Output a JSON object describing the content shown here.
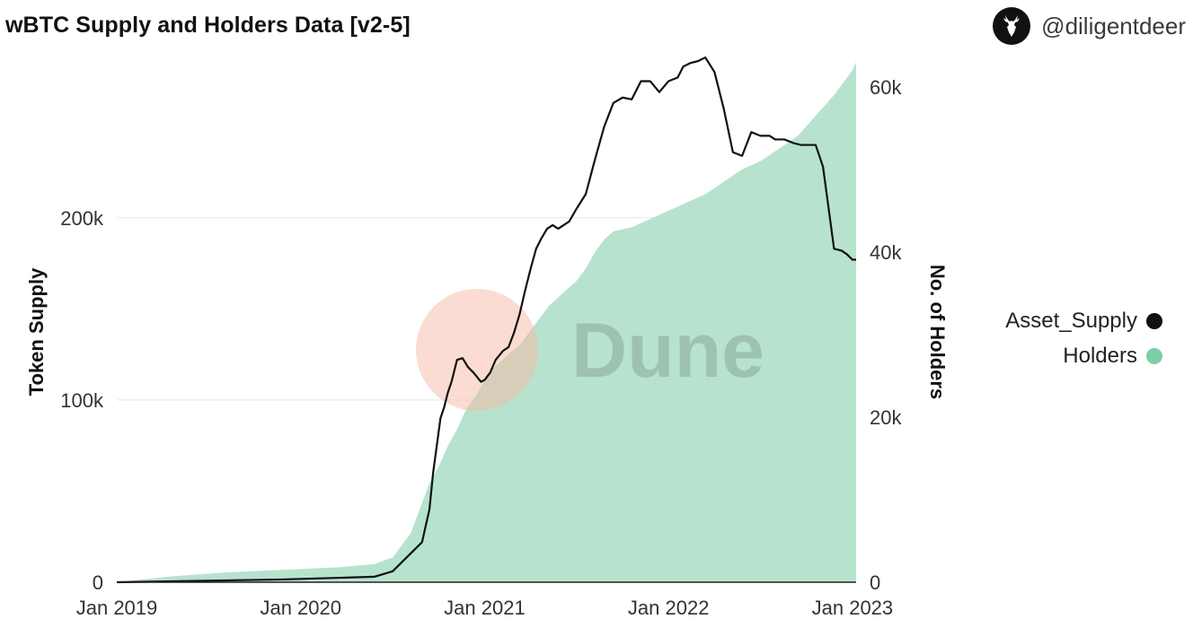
{
  "header": {
    "title": "wBTC Supply and Holders Data [v2-5]",
    "author": "@diligentdeer",
    "avatar_icon": "deer-icon"
  },
  "watermark": {
    "text": "Dune"
  },
  "chart_data": {
    "type": "line+area",
    "title": "wBTC Supply and Holders Data [v2-5]",
    "xlabel": "",
    "ylabel_left": "Token Supply",
    "ylabel_right": "No. of Holders",
    "x_ticks": [
      "Jan 2019",
      "Jan 2020",
      "Jan 2021",
      "Jan 2022",
      "Jan 2023"
    ],
    "y_left_ticks": [
      "0",
      "100k",
      "200k"
    ],
    "y_left_tick_values": [
      0,
      100000,
      200000
    ],
    "y_right_ticks": [
      "0",
      "20k",
      "40k",
      "60k"
    ],
    "y_right_tick_values": [
      0,
      20000,
      40000,
      60000
    ],
    "x_range": [
      2019.0,
      2023.02
    ],
    "y_left_range": [
      0,
      290000
    ],
    "y_right_range": [
      0,
      64000
    ],
    "grid": true,
    "legend_position": "right",
    "colors": {
      "supply": "#111111",
      "holders": "#7ccfa4",
      "holders_fill": "#b7e3ce",
      "grid": "#e8e8e8"
    },
    "series": [
      {
        "name": "Asset_Supply",
        "axis": "left",
        "style": "line",
        "x": [
          2019.0,
          2019.3,
          2019.6,
          2019.9,
          2020.4,
          2020.5,
          2020.58,
          2020.62,
          2020.66,
          2020.7,
          2020.72,
          2020.74,
          2020.76,
          2020.78,
          2020.8,
          2020.82,
          2020.85,
          2020.88,
          2020.91,
          2020.94,
          2020.98,
          2021.0,
          2021.03,
          2021.06,
          2021.1,
          2021.13,
          2021.16,
          2021.19,
          2021.22,
          2021.25,
          2021.28,
          2021.31,
          2021.34,
          2021.37,
          2021.4,
          2021.43,
          2021.46,
          2021.5,
          2021.55,
          2021.6,
          2021.65,
          2021.7,
          2021.75,
          2021.8,
          2021.85,
          2021.9,
          2021.95,
          2022.0,
          2022.05,
          2022.08,
          2022.12,
          2022.16,
          2022.2,
          2022.25,
          2022.3,
          2022.35,
          2022.4,
          2022.45,
          2022.5,
          2022.55,
          2022.58,
          2022.63,
          2022.68,
          2022.72,
          2022.76,
          2022.8,
          2022.84,
          2022.88,
          2022.9,
          2022.94,
          2022.97,
          2023.0,
          2023.02
        ],
        "values": [
          0,
          500,
          1000,
          1500,
          3000,
          6000,
          14000,
          18000,
          22000,
          40000,
          60000,
          75000,
          90000,
          96000,
          104000,
          110000,
          122000,
          123000,
          118000,
          115000,
          110000,
          111000,
          115000,
          122000,
          127000,
          129000,
          137000,
          147000,
          160000,
          172000,
          183000,
          189000,
          194000,
          196000,
          194000,
          196000,
          198000,
          205000,
          213000,
          232000,
          250000,
          263000,
          266000,
          265000,
          275000,
          275000,
          269000,
          275000,
          277000,
          283000,
          285000,
          286000,
          288000,
          280000,
          260000,
          236000,
          234000,
          247000,
          245000,
          245000,
          243000,
          243000,
          241000,
          240000,
          240000,
          240000,
          228000,
          198000,
          183000,
          182000,
          180000,
          177000,
          177000
        ]
      },
      {
        "name": "Holders",
        "axis": "right",
        "style": "area",
        "x": [
          2019.0,
          2019.3,
          2019.6,
          2019.9,
          2020.2,
          2020.4,
          2020.5,
          2020.55,
          2020.6,
          2020.65,
          2020.7,
          2020.75,
          2020.8,
          2020.85,
          2020.88,
          2020.9,
          2020.95,
          2021.0,
          2021.05,
          2021.1,
          2021.15,
          2021.2,
          2021.25,
          2021.3,
          2021.35,
          2021.4,
          2021.45,
          2021.5,
          2021.55,
          2021.6,
          2021.65,
          2021.7,
          2021.8,
          2021.9,
          2022.0,
          2022.1,
          2022.2,
          2022.3,
          2022.4,
          2022.5,
          2022.6,
          2022.7,
          2022.8,
          2022.9,
          2023.0,
          2023.02
        ],
        "values": [
          0,
          700,
          1200,
          1500,
          1800,
          2200,
          3000,
          4500,
          6000,
          9000,
          12000,
          14000,
          16500,
          18500,
          20000,
          21000,
          22500,
          24500,
          26000,
          27000,
          28000,
          29000,
          30500,
          32000,
          33500,
          34500,
          35500,
          36500,
          38000,
          40000,
          41500,
          42500,
          43000,
          44000,
          45000,
          46000,
          47000,
          48500,
          50000,
          51000,
          52500,
          54000,
          56500,
          59000,
          62000,
          63000
        ]
      }
    ]
  },
  "legend": {
    "items": [
      {
        "label": "Asset_Supply",
        "color": "#111111"
      },
      {
        "label": "Holders",
        "color": "#7ccfa4"
      }
    ]
  }
}
